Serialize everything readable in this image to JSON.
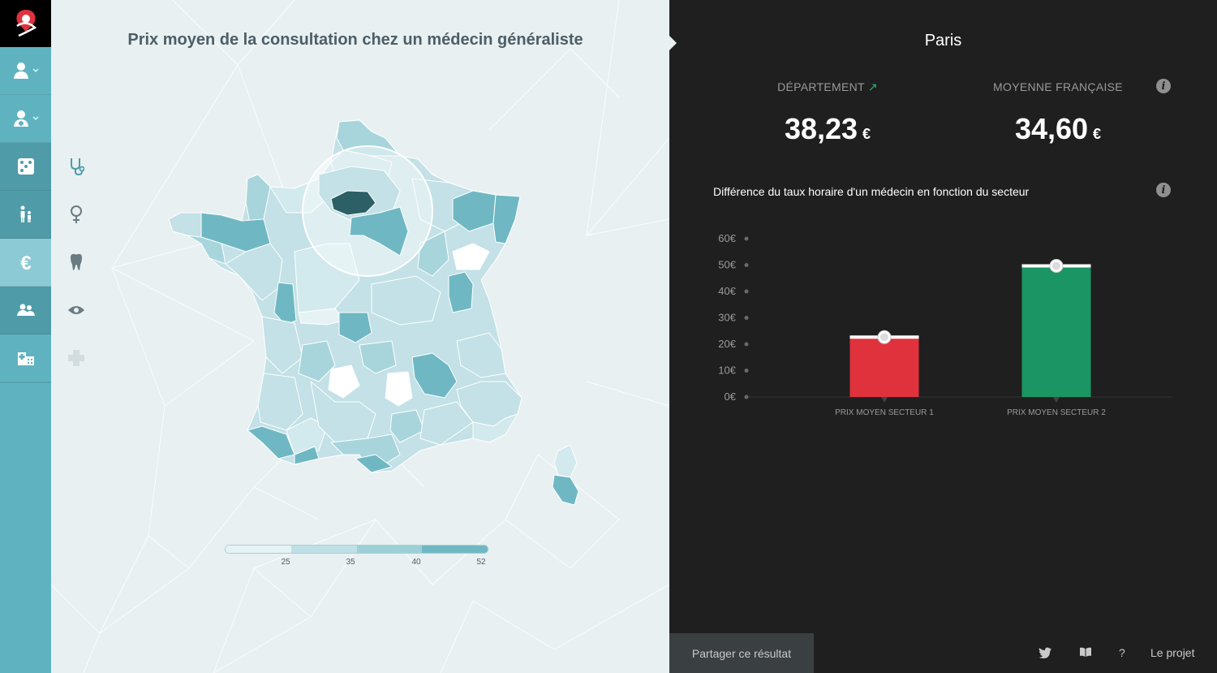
{
  "map": {
    "title": "Prix moyen de la consultation chez un médecin généraliste",
    "legend": {
      "ticks": [
        "25",
        "35",
        "40",
        "52"
      ],
      "colors": [
        "#e6f3f5",
        "#bfe0e5",
        "#9ccfd6",
        "#6fb8c3"
      ]
    },
    "colors": {
      "background": "#e8f0f2",
      "selected_region": "#2c5f66",
      "highlight_circle": "#ffffff"
    }
  },
  "sidebar": {
    "items": [
      {
        "icon": "patient-icon",
        "active": false
      },
      {
        "icon": "doctor-icon",
        "active": false
      },
      {
        "icon": "dice-icon",
        "active": false
      },
      {
        "icon": "family-icon",
        "active": false
      },
      {
        "icon": "euro-icon",
        "active": true
      },
      {
        "icon": "group-icon",
        "active": false
      },
      {
        "icon": "hospital-icon",
        "active": false
      }
    ],
    "colors": {
      "base": "#5fb3c0",
      "dark": "#4f9ba8",
      "active": "#8ccbd5"
    }
  },
  "categories": [
    "stethoscope-icon",
    "female-icon",
    "tooth-icon",
    "eye-icon",
    "plus-icon"
  ],
  "info": {
    "city": "Paris",
    "department_label": "DÉPARTEMENT",
    "department_trend": "↗",
    "department_value": "38,23",
    "france_label": "MOYENNE FRANÇAISE",
    "france_value": "34,60",
    "currency": "€",
    "info_glyph": "i",
    "chart_title": "Différence du taux horaire d'un médecin en fonction du secteur"
  },
  "chart_data": {
    "type": "bar",
    "categories": [
      "PRIX MOYEN SECTEUR 1",
      "PRIX MOYEN SECTEUR 2"
    ],
    "values": [
      23,
      50
    ],
    "colors": [
      "#e0323c",
      "#1a9563"
    ],
    "ylim": [
      0,
      60
    ],
    "yticks": [
      "0€",
      "10€",
      "20€",
      "30€",
      "40€",
      "50€",
      "60€"
    ],
    "grid": false
  },
  "footer": {
    "share_label": "Partager ce résultat",
    "help_label": "?",
    "project_label": "Le projet",
    "icons": [
      "twitter-icon",
      "book-icon"
    ]
  }
}
